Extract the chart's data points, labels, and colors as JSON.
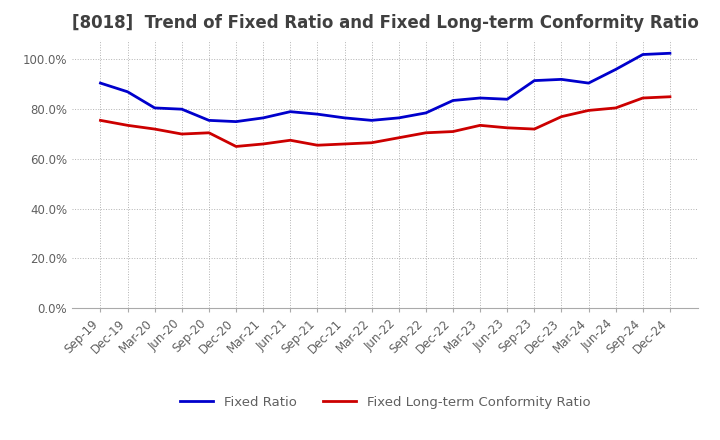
{
  "title": "[8018]  Trend of Fixed Ratio and Fixed Long-term Conformity Ratio",
  "title_fontsize": 12,
  "title_color": "#404040",
  "ylim": [
    0,
    108
  ],
  "yticks": [
    0,
    20,
    40,
    60,
    80,
    100
  ],
  "ytick_labels": [
    "0.0%",
    "20.0%",
    "40.0%",
    "60.0%",
    "80.0%",
    "100.0%"
  ],
  "x_labels": [
    "Sep-19",
    "Dec-19",
    "Mar-20",
    "Jun-20",
    "Sep-20",
    "Dec-20",
    "Mar-21",
    "Jun-21",
    "Sep-21",
    "Dec-21",
    "Mar-22",
    "Jun-22",
    "Sep-22",
    "Dec-22",
    "Mar-23",
    "Jun-23",
    "Sep-23",
    "Dec-23",
    "Mar-24",
    "Jun-24",
    "Sep-24",
    "Dec-24"
  ],
  "fixed_ratio": [
    90.5,
    87.0,
    80.5,
    80.0,
    75.5,
    75.0,
    76.5,
    79.0,
    78.0,
    76.5,
    75.5,
    76.5,
    78.5,
    83.5,
    84.5,
    84.0,
    91.5,
    92.0,
    90.5,
    96.0,
    102.0,
    102.5
  ],
  "fixed_lt_ratio": [
    75.5,
    73.5,
    72.0,
    70.0,
    70.5,
    65.0,
    66.0,
    67.5,
    65.5,
    66.0,
    66.5,
    68.5,
    70.5,
    71.0,
    73.5,
    72.5,
    72.0,
    77.0,
    79.5,
    80.5,
    84.5,
    85.0
  ],
  "fixed_ratio_color": "#0000cc",
  "fixed_lt_ratio_color": "#cc0000",
  "line_width": 2.0,
  "background_color": "#ffffff",
  "legend_fixed": "Fixed Ratio",
  "legend_fixed_lt": "Fixed Long-term Conformity Ratio",
  "grid_color": "#aaaaaa",
  "tick_color": "#606060",
  "tick_fontsize": 8.5
}
